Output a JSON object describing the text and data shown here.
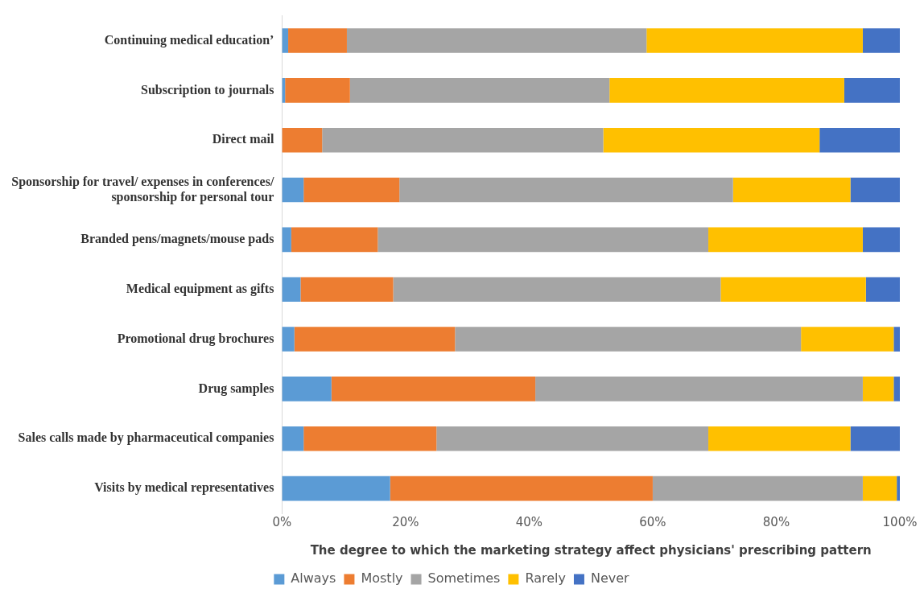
{
  "chart_data": {
    "type": "bar",
    "orientation": "horizontal",
    "stacked": true,
    "xlabel": "The degree to which the marketing strategy affect physicians' prescribing pattern",
    "categories": [
      "Continuing medical education’",
      "Subscription to journals",
      "Direct mail",
      "Sponsorship for travel/ expenses in conferences/ sponsorship for personal tour",
      "Branded pens/magnets/mouse pads",
      "Medical equipment as gifts",
      "Promotional drug brochures",
      "Drug samples",
      "Sales calls made by pharmaceutical companies",
      "Visits by medical representatives"
    ],
    "series": [
      {
        "name": "Always",
        "color": "#5b9bd5",
        "values": [
          1,
          0.5,
          0,
          3.5,
          1.5,
          3,
          2,
          8,
          3.5,
          17.5
        ]
      },
      {
        "name": "Mostly",
        "color": "#ed7d31",
        "values": [
          9.5,
          10.5,
          6.5,
          15.5,
          14,
          15,
          26,
          33,
          21.5,
          42.5
        ]
      },
      {
        "name": "Sometimes",
        "color": "#a5a5a5",
        "values": [
          48.5,
          42,
          45.5,
          54,
          53.5,
          53,
          56,
          53,
          44,
          34
        ]
      },
      {
        "name": "Rarely",
        "color": "#ffc000",
        "values": [
          35,
          38,
          35,
          19,
          25,
          23.5,
          15,
          5,
          23,
          5.5
        ]
      },
      {
        "name": "Never",
        "color": "#4472c4",
        "values": [
          6,
          9,
          13,
          8,
          6,
          5.5,
          1,
          1,
          8,
          0.5
        ]
      }
    ],
    "xlim": [
      0,
      100
    ],
    "xticks": [
      {
        "value": 0,
        "label": "0%"
      },
      {
        "value": 20,
        "label": "20%"
      },
      {
        "value": 40,
        "label": "40%"
      },
      {
        "value": 60,
        "label": "60%"
      },
      {
        "value": 80,
        "label": "80%"
      },
      {
        "value": 100,
        "label": "100%"
      }
    ],
    "grid": false,
    "legend": "bottom"
  }
}
